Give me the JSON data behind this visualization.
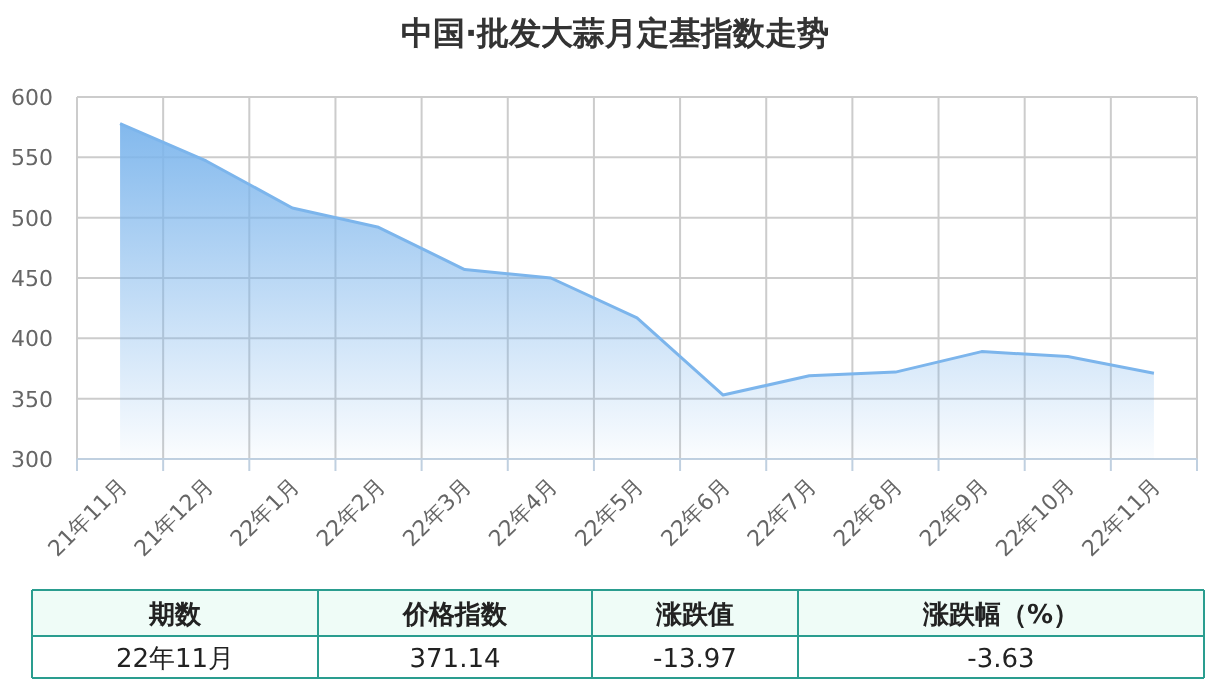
{
  "chart_data": {
    "type": "area",
    "title": "中国·批发大蒜月定基指数走势",
    "categories": [
      "21年11月",
      "21年12月",
      "22年1月",
      "22年2月",
      "22年3月",
      "22年4月",
      "22年5月",
      "22年6月",
      "22年7月",
      "22年8月",
      "22年9月",
      "22年10月",
      "22年11月"
    ],
    "series": [
      {
        "color": "#7cb5ec",
        "values": [
          578,
          547,
          508,
          492,
          457,
          450,
          417,
          353,
          369,
          372,
          389,
          385,
          371
        ]
      }
    ],
    "ylim": [
      300,
      600
    ],
    "yticks": [
      300,
      350,
      400,
      450,
      500,
      550,
      600
    ],
    "grid": true,
    "marker": "none",
    "annotations": [
      "期数",
      "价格指数",
      "涨跌值",
      "涨跌幅（%）",
      "22年11月",
      "371.14",
      "-13.97",
      "-3.63"
    ]
  }
}
